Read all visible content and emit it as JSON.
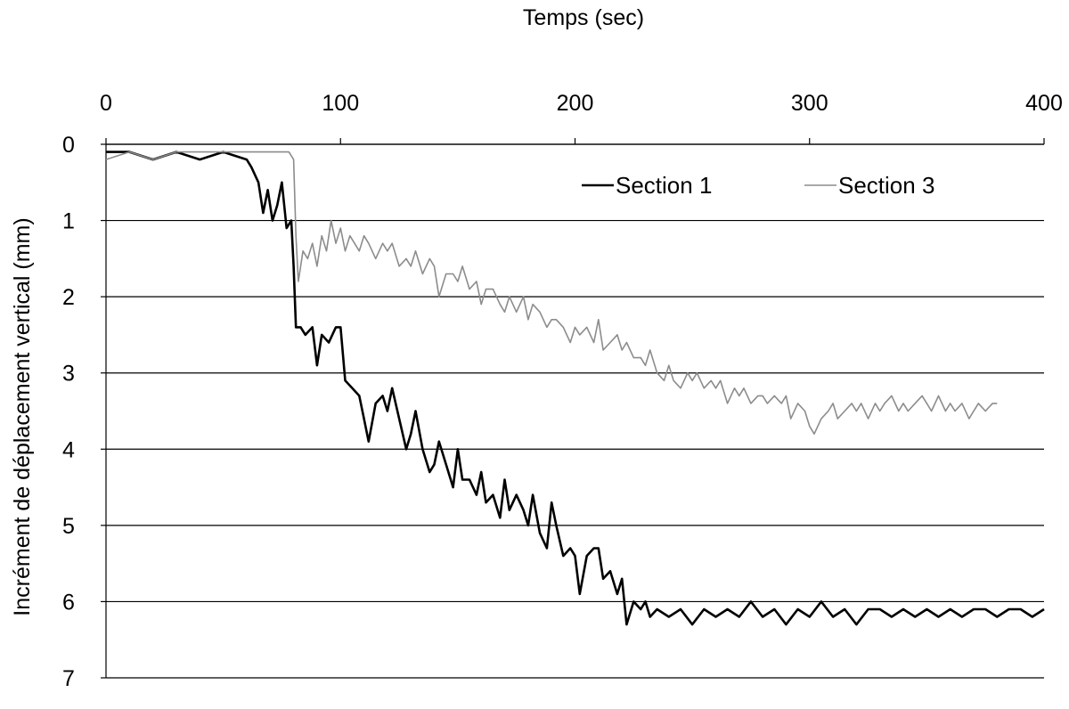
{
  "chart_data": {
    "type": "line",
    "title": "",
    "xlabel": "Temps (sec)",
    "ylabel": "Incrément de déplacement vertical (mm)",
    "xlim": [
      0,
      400
    ],
    "ylim": [
      0,
      7
    ],
    "y_inverted": true,
    "x_axis_position": "top",
    "x_ticks": [
      "0",
      "100",
      "200",
      "300",
      "400"
    ],
    "y_ticks": [
      "0",
      "1",
      "2",
      "3",
      "4",
      "5",
      "6",
      "7"
    ],
    "grid": "horizontal",
    "legend_position": "top-right",
    "series": [
      {
        "name": "Section 1",
        "color": "#000000",
        "points": [
          [
            0,
            0.1
          ],
          [
            10,
            0.1
          ],
          [
            20,
            0.2
          ],
          [
            30,
            0.1
          ],
          [
            40,
            0.2
          ],
          [
            50,
            0.1
          ],
          [
            60,
            0.2
          ],
          [
            62,
            0.3
          ],
          [
            65,
            0.5
          ],
          [
            67,
            0.9
          ],
          [
            69,
            0.6
          ],
          [
            71,
            1.0
          ],
          [
            73,
            0.8
          ],
          [
            75,
            0.5
          ],
          [
            77,
            1.1
          ],
          [
            79,
            1.0
          ],
          [
            80,
            1.6
          ],
          [
            81,
            2.4
          ],
          [
            83,
            2.4
          ],
          [
            85,
            2.5
          ],
          [
            88,
            2.4
          ],
          [
            90,
            2.9
          ],
          [
            92,
            2.5
          ],
          [
            95,
            2.6
          ],
          [
            98,
            2.4
          ],
          [
            100,
            2.4
          ],
          [
            102,
            3.1
          ],
          [
            105,
            3.2
          ],
          [
            108,
            3.3
          ],
          [
            110,
            3.6
          ],
          [
            112,
            3.9
          ],
          [
            115,
            3.4
          ],
          [
            118,
            3.3
          ],
          [
            120,
            3.5
          ],
          [
            122,
            3.2
          ],
          [
            125,
            3.6
          ],
          [
            128,
            4.0
          ],
          [
            130,
            3.8
          ],
          [
            132,
            3.5
          ],
          [
            135,
            4.0
          ],
          [
            138,
            4.3
          ],
          [
            140,
            4.2
          ],
          [
            142,
            3.9
          ],
          [
            145,
            4.2
          ],
          [
            148,
            4.5
          ],
          [
            150,
            4.0
          ],
          [
            152,
            4.4
          ],
          [
            155,
            4.4
          ],
          [
            158,
            4.6
          ],
          [
            160,
            4.3
          ],
          [
            162,
            4.7
          ],
          [
            165,
            4.6
          ],
          [
            168,
            4.9
          ],
          [
            170,
            4.4
          ],
          [
            172,
            4.8
          ],
          [
            175,
            4.6
          ],
          [
            178,
            4.8
          ],
          [
            180,
            5.0
          ],
          [
            182,
            4.6
          ],
          [
            185,
            5.1
          ],
          [
            188,
            5.3
          ],
          [
            190,
            4.7
          ],
          [
            192,
            5.0
          ],
          [
            195,
            5.4
          ],
          [
            198,
            5.3
          ],
          [
            200,
            5.4
          ],
          [
            202,
            5.9
          ],
          [
            205,
            5.4
          ],
          [
            208,
            5.3
          ],
          [
            210,
            5.3
          ],
          [
            212,
            5.7
          ],
          [
            215,
            5.6
          ],
          [
            218,
            5.9
          ],
          [
            220,
            5.7
          ],
          [
            222,
            6.3
          ],
          [
            225,
            6.0
          ],
          [
            228,
            6.1
          ],
          [
            230,
            6.0
          ],
          [
            232,
            6.2
          ],
          [
            235,
            6.1
          ],
          [
            240,
            6.2
          ],
          [
            245,
            6.1
          ],
          [
            250,
            6.3
          ],
          [
            255,
            6.1
          ],
          [
            260,
            6.2
          ],
          [
            265,
            6.1
          ],
          [
            270,
            6.2
          ],
          [
            275,
            6.0
          ],
          [
            280,
            6.2
          ],
          [
            285,
            6.1
          ],
          [
            290,
            6.3
          ],
          [
            295,
            6.1
          ],
          [
            300,
            6.2
          ],
          [
            305,
            6.0
          ],
          [
            310,
            6.2
          ],
          [
            315,
            6.1
          ],
          [
            320,
            6.3
          ],
          [
            325,
            6.1
          ],
          [
            330,
            6.1
          ],
          [
            335,
            6.2
          ],
          [
            340,
            6.1
          ],
          [
            345,
            6.2
          ],
          [
            350,
            6.1
          ],
          [
            355,
            6.2
          ],
          [
            360,
            6.1
          ],
          [
            365,
            6.2
          ],
          [
            370,
            6.1
          ],
          [
            375,
            6.1
          ],
          [
            380,
            6.2
          ],
          [
            385,
            6.1
          ],
          [
            390,
            6.1
          ],
          [
            395,
            6.2
          ],
          [
            400,
            6.1
          ]
        ]
      },
      {
        "name": "Section 3",
        "color": "#8c8c8c",
        "points": [
          [
            0,
            0.2
          ],
          [
            10,
            0.1
          ],
          [
            20,
            0.2
          ],
          [
            30,
            0.1
          ],
          [
            40,
            0.1
          ],
          [
            50,
            0.1
          ],
          [
            60,
            0.1
          ],
          [
            70,
            0.1
          ],
          [
            78,
            0.1
          ],
          [
            80,
            0.2
          ],
          [
            81,
            1.2
          ],
          [
            82,
            1.8
          ],
          [
            84,
            1.4
          ],
          [
            86,
            1.5
          ],
          [
            88,
            1.3
          ],
          [
            90,
            1.6
          ],
          [
            92,
            1.2
          ],
          [
            94,
            1.4
          ],
          [
            96,
            1.0
          ],
          [
            98,
            1.3
          ],
          [
            100,
            1.1
          ],
          [
            102,
            1.4
          ],
          [
            104,
            1.2
          ],
          [
            106,
            1.3
          ],
          [
            108,
            1.4
          ],
          [
            110,
            1.2
          ],
          [
            112,
            1.3
          ],
          [
            115,
            1.5
          ],
          [
            118,
            1.3
          ],
          [
            120,
            1.4
          ],
          [
            122,
            1.3
          ],
          [
            125,
            1.6
          ],
          [
            128,
            1.5
          ],
          [
            130,
            1.6
          ],
          [
            132,
            1.4
          ],
          [
            135,
            1.7
          ],
          [
            138,
            1.5
          ],
          [
            140,
            1.6
          ],
          [
            142,
            2.0
          ],
          [
            145,
            1.7
          ],
          [
            148,
            1.7
          ],
          [
            150,
            1.8
          ],
          [
            152,
            1.6
          ],
          [
            155,
            1.9
          ],
          [
            158,
            1.8
          ],
          [
            160,
            2.1
          ],
          [
            162,
            1.9
          ],
          [
            165,
            1.9
          ],
          [
            168,
            2.1
          ],
          [
            170,
            2.2
          ],
          [
            172,
            2.0
          ],
          [
            175,
            2.2
          ],
          [
            178,
            2.0
          ],
          [
            180,
            2.3
          ],
          [
            182,
            2.1
          ],
          [
            185,
            2.2
          ],
          [
            188,
            2.4
          ],
          [
            190,
            2.3
          ],
          [
            192,
            2.3
          ],
          [
            195,
            2.4
          ],
          [
            198,
            2.6
          ],
          [
            200,
            2.4
          ],
          [
            202,
            2.5
          ],
          [
            205,
            2.4
          ],
          [
            208,
            2.6
          ],
          [
            210,
            2.3
          ],
          [
            212,
            2.7
          ],
          [
            215,
            2.6
          ],
          [
            218,
            2.5
          ],
          [
            220,
            2.7
          ],
          [
            222,
            2.6
          ],
          [
            225,
            2.8
          ],
          [
            228,
            2.8
          ],
          [
            230,
            2.9
          ],
          [
            232,
            2.7
          ],
          [
            235,
            3.0
          ],
          [
            238,
            3.1
          ],
          [
            240,
            2.9
          ],
          [
            242,
            3.1
          ],
          [
            245,
            3.2
          ],
          [
            248,
            3.0
          ],
          [
            250,
            3.1
          ],
          [
            252,
            3.0
          ],
          [
            255,
            3.2
          ],
          [
            258,
            3.1
          ],
          [
            260,
            3.2
          ],
          [
            262,
            3.1
          ],
          [
            265,
            3.4
          ],
          [
            268,
            3.2
          ],
          [
            270,
            3.3
          ],
          [
            272,
            3.2
          ],
          [
            275,
            3.4
          ],
          [
            278,
            3.3
          ],
          [
            280,
            3.3
          ],
          [
            282,
            3.4
          ],
          [
            285,
            3.3
          ],
          [
            288,
            3.4
          ],
          [
            290,
            3.3
          ],
          [
            292,
            3.6
          ],
          [
            295,
            3.4
          ],
          [
            298,
            3.5
          ],
          [
            300,
            3.7
          ],
          [
            302,
            3.8
          ],
          [
            305,
            3.6
          ],
          [
            308,
            3.5
          ],
          [
            310,
            3.4
          ],
          [
            312,
            3.6
          ],
          [
            315,
            3.5
          ],
          [
            318,
            3.4
          ],
          [
            320,
            3.5
          ],
          [
            322,
            3.4
          ],
          [
            325,
            3.6
          ],
          [
            328,
            3.4
          ],
          [
            330,
            3.5
          ],
          [
            332,
            3.4
          ],
          [
            335,
            3.3
          ],
          [
            338,
            3.5
          ],
          [
            340,
            3.4
          ],
          [
            342,
            3.5
          ],
          [
            345,
            3.4
          ],
          [
            348,
            3.3
          ],
          [
            350,
            3.4
          ],
          [
            352,
            3.5
          ],
          [
            355,
            3.3
          ],
          [
            358,
            3.5
          ],
          [
            360,
            3.4
          ],
          [
            362,
            3.5
          ],
          [
            365,
            3.4
          ],
          [
            368,
            3.6
          ],
          [
            370,
            3.5
          ],
          [
            372,
            3.4
          ],
          [
            375,
            3.5
          ],
          [
            378,
            3.4
          ],
          [
            380,
            3.4
          ]
        ]
      }
    ]
  }
}
